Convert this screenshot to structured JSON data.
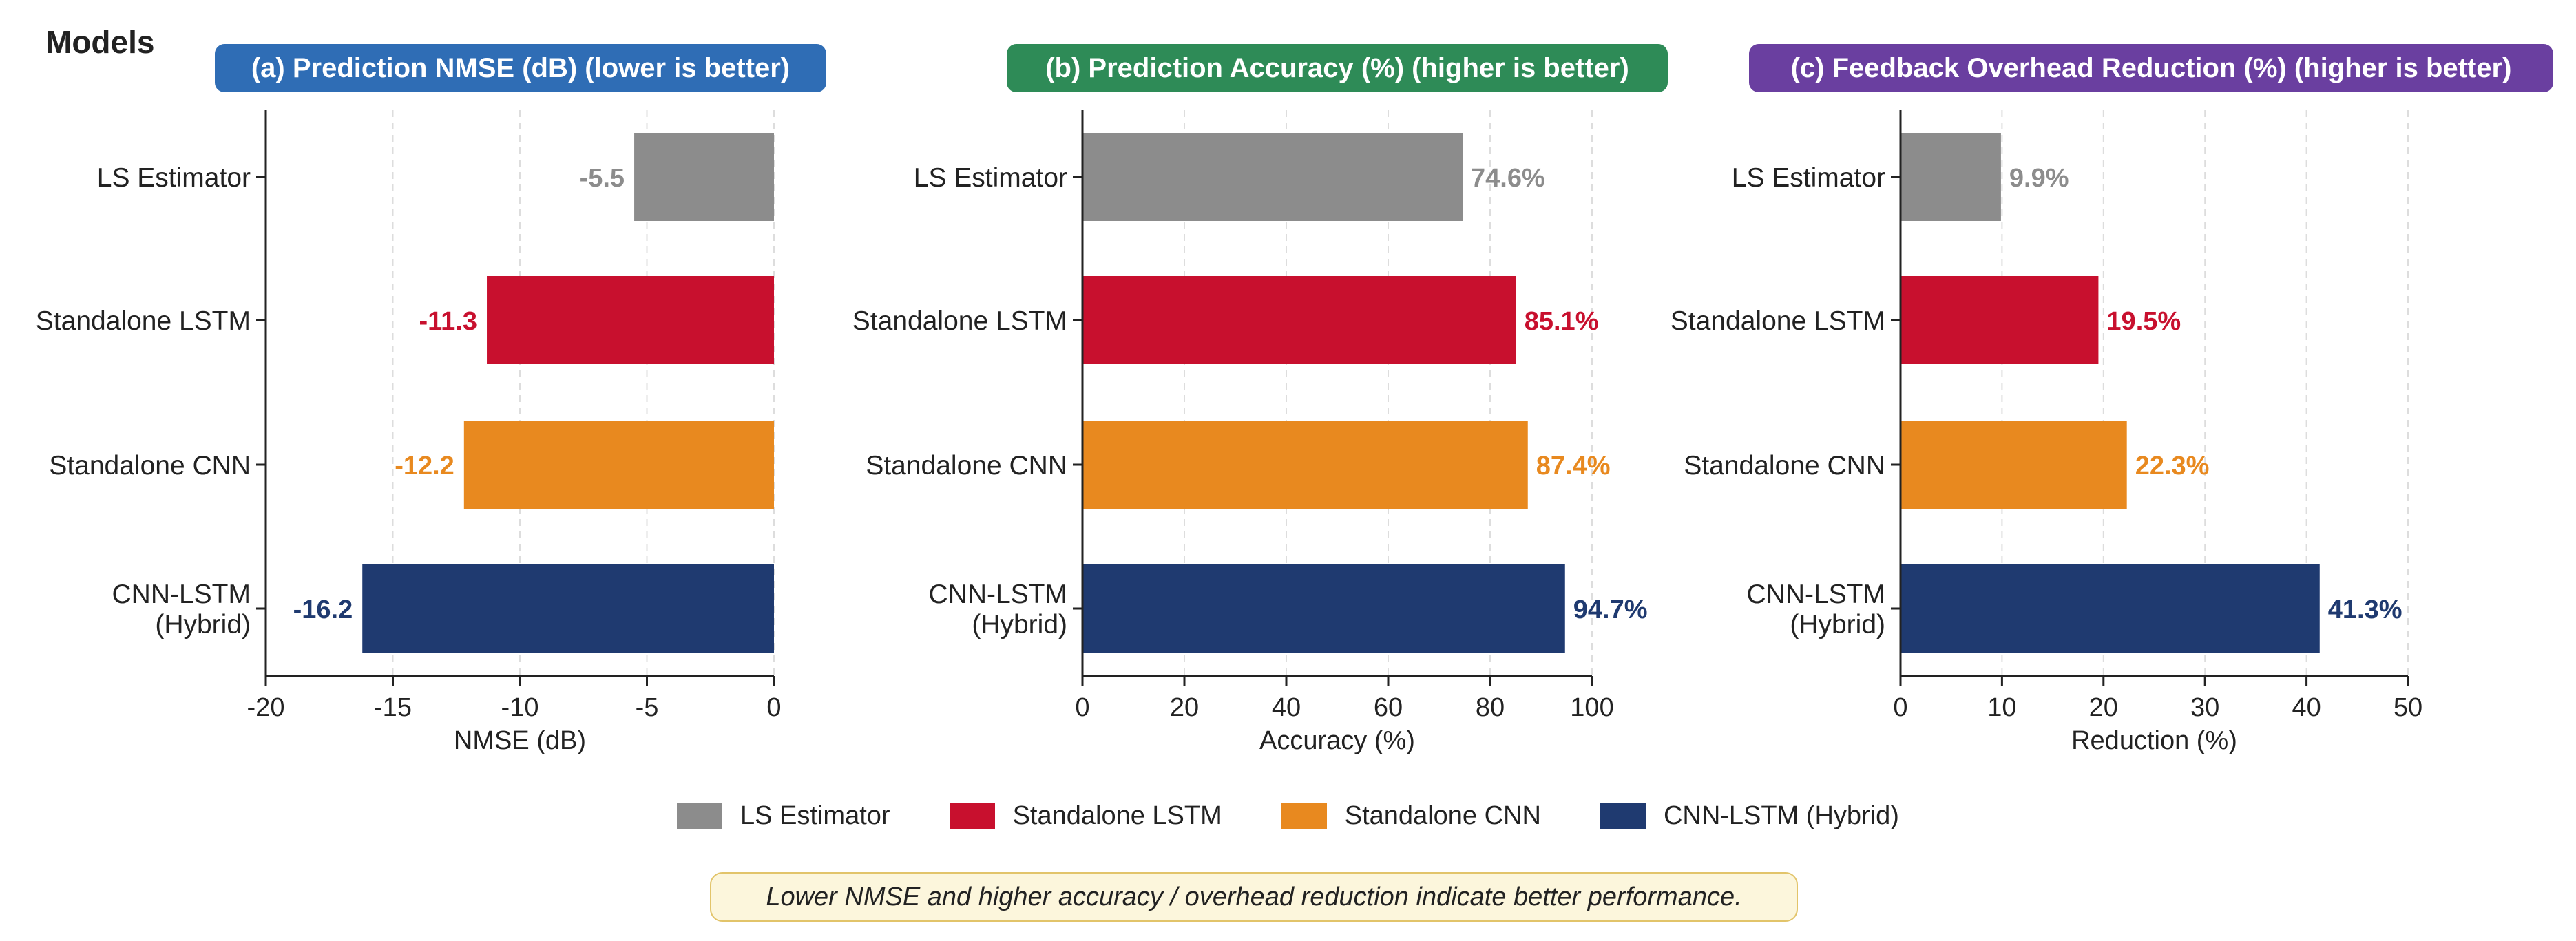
{
  "figure": {
    "models_heading": "Models",
    "note": "Lower NMSE and higher accuracy / overhead reduction indicate better performance."
  },
  "legend": [
    {
      "label": "LS Estimator",
      "color": "#8c8c8c"
    },
    {
      "label": "Standalone LSTM",
      "color": "#c8102e"
    },
    {
      "label": "Standalone CNN",
      "color": "#e8891f"
    },
    {
      "label": "CNN-LSTM (Hybrid)",
      "color": "#1f3a70"
    }
  ],
  "chart_data": [
    {
      "type": "bar",
      "orientation": "horizontal",
      "title": "(a) Prediction NMSE (dB) (lower is better)",
      "title_color": "#2f6db5",
      "xlabel": "NMSE (dB)",
      "categories": [
        [
          "LS Estimator"
        ],
        [
          "Standalone LSTM"
        ],
        [
          "Standalone CNN"
        ],
        [
          "CNN-LSTM",
          "(Hybrid)"
        ]
      ],
      "values": [
        -5.5,
        -11.3,
        -12.2,
        -16.2
      ],
      "value_labels": [
        "-5.5",
        "-11.3",
        "-12.2",
        "-16.2"
      ],
      "colors": [
        "#8c8c8c",
        "#c8102e",
        "#e8891f",
        "#1f3a70"
      ],
      "xlim": [
        -20,
        0
      ],
      "xticks": [
        -20,
        -15,
        -10,
        -5,
        0
      ],
      "xtick_labels": [
        "-20",
        "-15",
        "-10",
        "-5",
        "0"
      ],
      "grid": "vertical dashed"
    },
    {
      "type": "bar",
      "orientation": "horizontal",
      "title": "(b) Prediction Accuracy (%) (higher is better)",
      "title_color": "#2e8b57",
      "xlabel": "Accuracy (%)",
      "categories": [
        [
          "LS Estimator"
        ],
        [
          "Standalone LSTM"
        ],
        [
          "Standalone CNN"
        ],
        [
          "CNN-LSTM",
          "(Hybrid)"
        ]
      ],
      "values": [
        74.6,
        85.1,
        87.4,
        94.7
      ],
      "value_labels": [
        "74.6%",
        "85.1%",
        "87.4%",
        "94.7%"
      ],
      "colors": [
        "#8c8c8c",
        "#c8102e",
        "#e8891f",
        "#1f3a70"
      ],
      "xlim": [
        0,
        100
      ],
      "xticks": [
        0,
        20,
        40,
        60,
        80,
        100
      ],
      "xtick_labels": [
        "0",
        "20",
        "40",
        "60",
        "80",
        "100"
      ],
      "grid": "vertical dashed"
    },
    {
      "type": "bar",
      "orientation": "horizontal",
      "title": "(c) Feedback Overhead Reduction (%) (higher is better)",
      "title_color": "#6a3fa0",
      "xlabel": "Reduction (%)",
      "categories": [
        [
          "LS Estimator"
        ],
        [
          "Standalone LSTM"
        ],
        [
          "Standalone CNN"
        ],
        [
          "CNN-LSTM",
          "(Hybrid)"
        ]
      ],
      "values": [
        9.9,
        19.5,
        22.3,
        41.3
      ],
      "value_labels": [
        "9.9%",
        "19.5%",
        "22.3%",
        "41.3%"
      ],
      "colors": [
        "#8c8c8c",
        "#c8102e",
        "#e8891f",
        "#1f3a70"
      ],
      "xlim": [
        0,
        50
      ],
      "xticks": [
        0,
        10,
        20,
        30,
        40,
        50
      ],
      "xtick_labels": [
        "0",
        "10",
        "20",
        "30",
        "40",
        "50"
      ],
      "grid": "vertical dashed"
    }
  ]
}
